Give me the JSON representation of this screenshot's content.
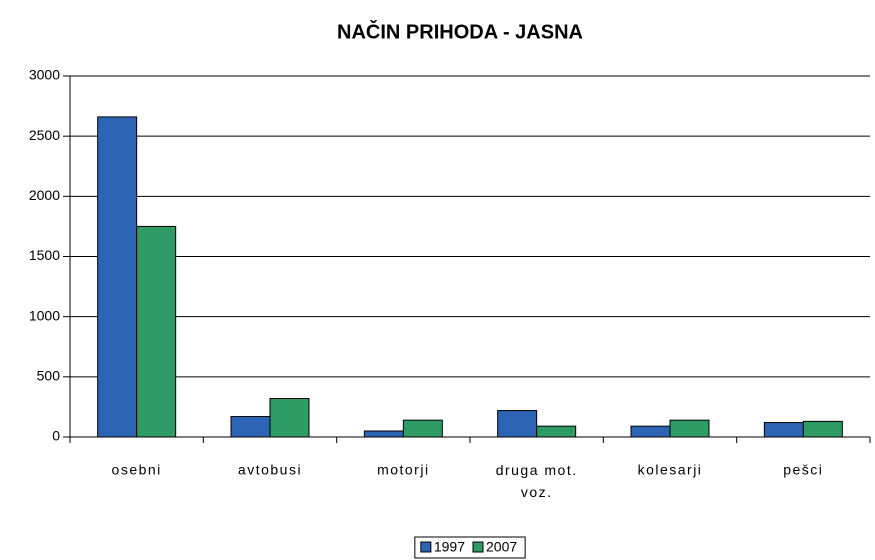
{
  "chart_data": {
    "type": "bar",
    "title": "NAČIN PRIHODA - JASNA",
    "categories": [
      "osebni",
      "avtobusi",
      "motorji",
      "druga mot. voz.",
      "kolesarji",
      "pešci"
    ],
    "series": [
      {
        "name": "1997",
        "color": "#2e64b4",
        "values": [
          2660,
          170,
          50,
          220,
          90,
          120
        ]
      },
      {
        "name": "2007",
        "color": "#2e9a64",
        "values": [
          1750,
          320,
          140,
          90,
          140,
          130
        ]
      }
    ],
    "ylim": [
      0,
      3000
    ],
    "yticks": [
      0,
      500,
      1000,
      1500,
      2000,
      2500,
      3000
    ],
    "grid": true,
    "legend": "bottom"
  }
}
